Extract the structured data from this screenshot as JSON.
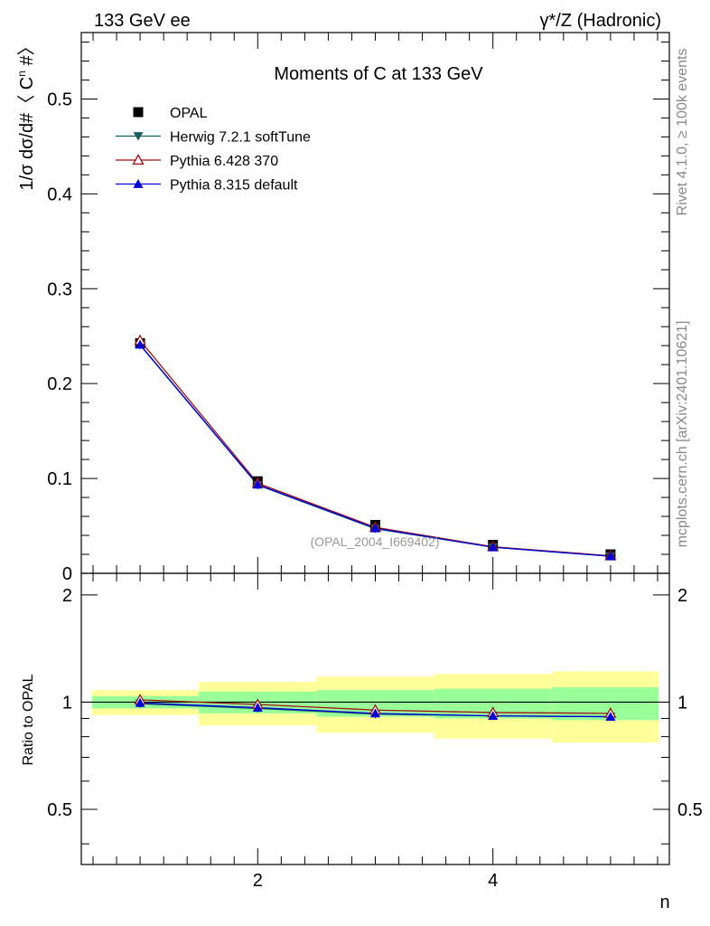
{
  "header": {
    "left": "133 GeV ee",
    "right": "γ*/Z (Hadronic)"
  },
  "side_labels": {
    "rivet": "Rivet 4.1.0, ≥ 100k events",
    "mcplots": "mcplots.cern.ch [arXiv:2401.10621]"
  },
  "chart_data": [
    {
      "type": "line",
      "title": "Moments of C at 133 GeV",
      "xlabel": "n",
      "ylabel": "1/σ  dσ/d#〈 C^n #〉",
      "ylabel_parts": {
        "main": "1/σ  dσ/d#〈 C",
        "sup": "n",
        "end": " #〉"
      },
      "xlim": [
        0.5,
        5.5
      ],
      "ylim": [
        0,
        0.57
      ],
      "yticks": [
        0,
        0.1,
        0.2,
        0.3,
        0.4,
        0.5
      ],
      "yticklabels": [
        "0",
        "0.1",
        "0.2",
        "0.3",
        "0.4",
        "0.5"
      ],
      "x": [
        1,
        2,
        3,
        4,
        5
      ],
      "watermark": "(OPAL_2004_I669402)",
      "legend_position": "top-left",
      "series": [
        {
          "name": "OPAL",
          "marker": "square",
          "color": "#000000",
          "values": [
            0.2425,
            0.097,
            0.051,
            0.03,
            0.02
          ]
        },
        {
          "name": "Herwig 7.2.1 softTune",
          "marker": "triangle-down",
          "color": "#1a5f5f",
          "values": [
            0.2405,
            0.093,
            0.047,
            0.0275,
            0.018
          ]
        },
        {
          "name": "Pythia 6.428 370",
          "marker": "triangle-open",
          "color": "#a01010",
          "values": [
            0.2455,
            0.095,
            0.0485,
            0.028,
            0.0185
          ]
        },
        {
          "name": "Pythia 8.315 default",
          "marker": "triangle-up",
          "color": "#0000dd",
          "values": [
            0.241,
            0.0935,
            0.0475,
            0.0275,
            0.018
          ]
        }
      ]
    },
    {
      "type": "line",
      "title": "",
      "xlabel": "n",
      "ylabel": "Ratio to OPAL",
      "xlim": [
        0.5,
        5.5
      ],
      "ylim": [
        0.35,
        2.3
      ],
      "xticks": [
        2,
        4
      ],
      "xticklabels": [
        "2",
        "4"
      ],
      "yticks": [
        0.5,
        1,
        2
      ],
      "yticklabels": [
        "0.5",
        "1",
        "2"
      ],
      "x": [
        1,
        2,
        3,
        4,
        5
      ],
      "bands": {
        "inner_color": "#99ff99",
        "outer_color": "#ffff99",
        "inner_lo": [
          0.96,
          0.93,
          0.91,
          0.9,
          0.89
        ],
        "inner_hi": [
          1.04,
          1.07,
          1.08,
          1.09,
          1.1
        ],
        "outer_lo": [
          0.92,
          0.86,
          0.82,
          0.79,
          0.77
        ],
        "outer_hi": [
          1.08,
          1.14,
          1.18,
          1.2,
          1.22
        ]
      },
      "series": [
        {
          "name": "Herwig 7.2.1 softTune",
          "marker": "triangle-down",
          "color": "#1a5f5f",
          "values": [
            0.99,
            0.96,
            0.925,
            0.915,
            0.91
          ]
        },
        {
          "name": "Pythia 6.428 370",
          "marker": "triangle-open",
          "color": "#a01010",
          "values": [
            1.015,
            0.985,
            0.95,
            0.935,
            0.93
          ]
        },
        {
          "name": "Pythia 8.315 default",
          "marker": "triangle-up",
          "color": "#0000dd",
          "values": [
            0.995,
            0.965,
            0.93,
            0.915,
            0.91
          ]
        }
      ]
    }
  ]
}
